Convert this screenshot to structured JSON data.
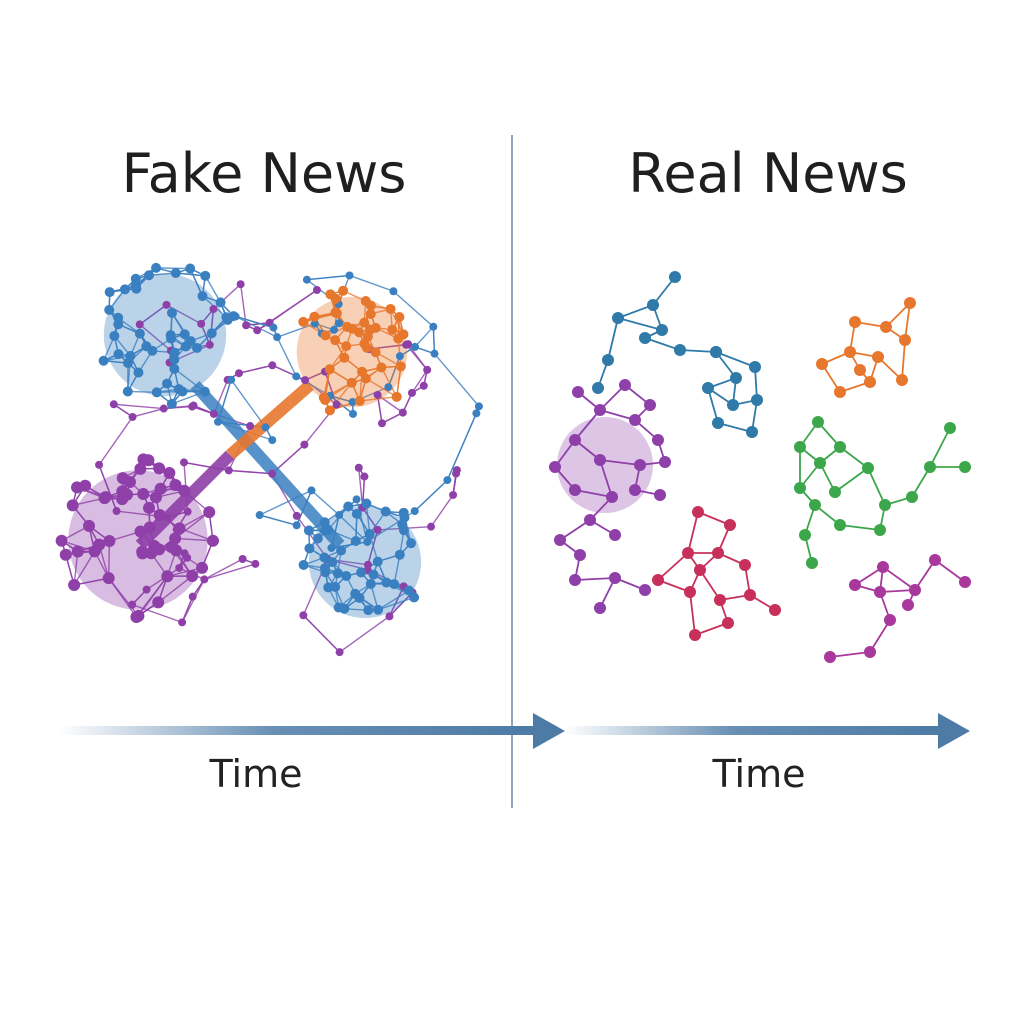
{
  "left_panel": {
    "title": "Fake News",
    "axis_label": "Time"
  },
  "right_panel": {
    "title": "Real News",
    "axis_label": "Time"
  },
  "colors": {
    "blue": "#3a80c1",
    "orange": "#e8772e",
    "purple": "#8e3fa8",
    "green": "#3ba74a",
    "red": "#c8305c",
    "teal": "#2f7aa8",
    "magenta": "#a8389c",
    "arrow": "#4d7ba6",
    "divider": "#8fa3bd"
  }
}
